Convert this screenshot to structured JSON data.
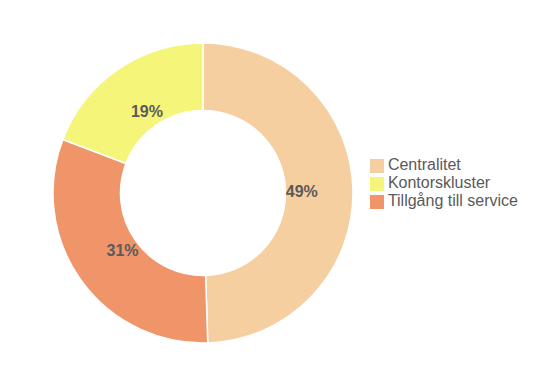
{
  "chart_data": {
    "type": "pie",
    "categories": [
      "Centralitet",
      "Tillgång till service",
      "Kontorskluster"
    ],
    "values": [
      49,
      31,
      19
    ],
    "value_labels": [
      "49%",
      "31%",
      "19%"
    ],
    "colors": [
      "#F5CFA0",
      "#F0956A",
      "#F5F57A"
    ],
    "data_labels": true,
    "legend": "right"
  }
}
